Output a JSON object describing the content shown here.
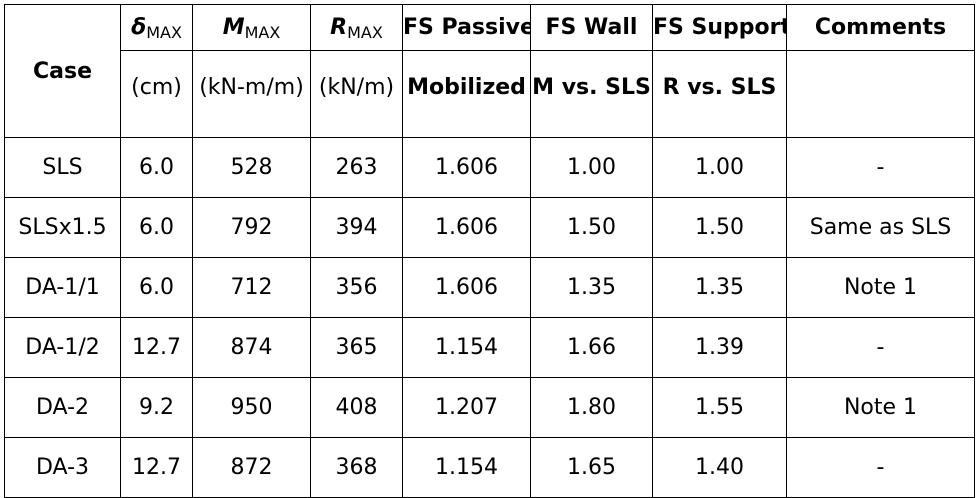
{
  "table": {
    "headers": {
      "case": "Case",
      "delta_symbol": "δ",
      "delta_sub": "MAX",
      "m_symbol": "M",
      "m_sub": "MAX",
      "r_symbol": "R",
      "r_sub": "MAX",
      "fs_passive": "FS Passive",
      "fs_wall": "FS Wall",
      "fs_support": "FS Support",
      "comments": "Comments"
    },
    "subheaders": {
      "delta_unit": "(cm)",
      "m_unit": "(kN-m/m)",
      "r_unit": "(kN/m)",
      "fs_passive": "Mobilized",
      "fs_wall": "M vs. SLS",
      "fs_support": "R vs. SLS",
      "comments": ""
    },
    "rows": [
      {
        "case": "SLS",
        "delta": "6.0",
        "m": "528",
        "r": "263",
        "fs_passive": "1.606",
        "fs_wall": "1.00",
        "fs_support": "1.00",
        "comments": "-"
      },
      {
        "case": "SLSx1.5",
        "delta": "6.0",
        "m": "792",
        "r": "394",
        "fs_passive": "1.606",
        "fs_wall": "1.50",
        "fs_support": "1.50",
        "comments": "Same as SLS"
      },
      {
        "case": "DA-1/1",
        "delta": "6.0",
        "m": "712",
        "r": "356",
        "fs_passive": "1.606",
        "fs_wall": "1.35",
        "fs_support": "1.35",
        "comments": "Note 1"
      },
      {
        "case": "DA-1/2",
        "delta": "12.7",
        "m": "874",
        "r": "365",
        "fs_passive": "1.154",
        "fs_wall": "1.66",
        "fs_support": "1.39",
        "comments": "-"
      },
      {
        "case": "DA-2",
        "delta": "9.2",
        "m": "950",
        "r": "408",
        "fs_passive": "1.207",
        "fs_wall": "1.80",
        "fs_support": "1.55",
        "comments": "Note 1"
      },
      {
        "case": "DA-3",
        "delta": "12.7",
        "m": "872",
        "r": "368",
        "fs_passive": "1.154",
        "fs_wall": "1.65",
        "fs_support": "1.40",
        "comments": "-"
      }
    ]
  }
}
